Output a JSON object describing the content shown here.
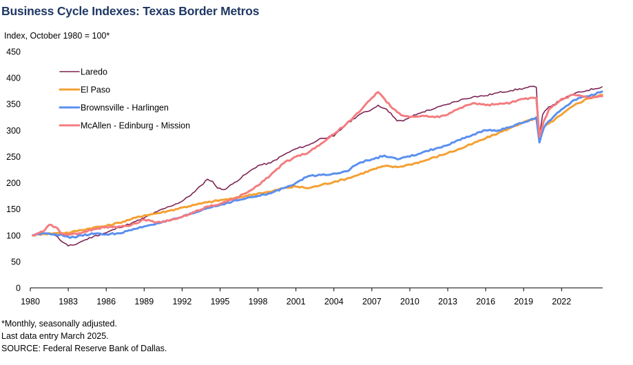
{
  "title": "Business Cycle Indexes: Texas Border Metros",
  "notes": [
    "*Monthly, seasonally adjusted.",
    "Last data entry March 2025.",
    "SOURCE: Federal Reserve Bank of Dallas."
  ],
  "chart_data": {
    "type": "line",
    "title": "Business Cycle Indexes: Texas Border Metros",
    "xlabel": "",
    "ylabel": "Index, October 1980 = 100*",
    "xlim": [
      1980,
      2025.25
    ],
    "ylim": [
      0,
      450
    ],
    "y_ticks": [
      0,
      50,
      100,
      150,
      200,
      250,
      300,
      350,
      400,
      450
    ],
    "x_ticks": [
      1980,
      1983,
      1986,
      1989,
      1992,
      1995,
      1998,
      2001,
      2004,
      2007,
      2010,
      2013,
      2016,
      2019,
      2022
    ],
    "legend_position": "top-left",
    "series": [
      {
        "name": "Laredo",
        "color": "#7b2252",
        "points": [
          [
            1980.2,
            100
          ],
          [
            1981,
            103
          ],
          [
            1981.5,
            104
          ],
          [
            1982,
            100
          ],
          [
            1982.5,
            88
          ],
          [
            1983,
            80
          ],
          [
            1983.5,
            82
          ],
          [
            1984,
            88
          ],
          [
            1985,
            98
          ],
          [
            1986,
            105
          ],
          [
            1987,
            115
          ],
          [
            1988,
            123
          ],
          [
            1989,
            133
          ],
          [
            1990,
            145
          ],
          [
            1991,
            155
          ],
          [
            1992,
            165
          ],
          [
            1993,
            183
          ],
          [
            1993.5,
            195
          ],
          [
            1994,
            207
          ],
          [
            1994.4,
            203
          ],
          [
            1994.8,
            190
          ],
          [
            1995.3,
            187
          ],
          [
            1996,
            198
          ],
          [
            1997,
            216
          ],
          [
            1998,
            233
          ],
          [
            1999,
            238
          ],
          [
            2000,
            253
          ],
          [
            2001,
            265
          ],
          [
            2002,
            272
          ],
          [
            2003,
            285
          ],
          [
            2004,
            289
          ],
          [
            2005,
            312
          ],
          [
            2006,
            330
          ],
          [
            2007,
            340
          ],
          [
            2007.5,
            348
          ],
          [
            2008,
            342
          ],
          [
            2008.5,
            333
          ],
          [
            2009,
            318
          ],
          [
            2009.5,
            318
          ],
          [
            2010,
            325
          ],
          [
            2011,
            335
          ],
          [
            2012,
            342
          ],
          [
            2013,
            350
          ],
          [
            2014,
            358
          ],
          [
            2015,
            364
          ],
          [
            2016,
            366
          ],
          [
            2017,
            372
          ],
          [
            2018,
            376
          ],
          [
            2019,
            380
          ],
          [
            2019.8,
            384
          ],
          [
            2020.0,
            382
          ],
          [
            2020.25,
            290
          ],
          [
            2020.5,
            330
          ],
          [
            2021,
            345
          ],
          [
            2022,
            358
          ],
          [
            2023,
            370
          ],
          [
            2024,
            376
          ],
          [
            2025.2,
            383
          ]
        ]
      },
      {
        "name": "El Paso",
        "color": "#f4a032",
        "points": [
          [
            1980.2,
            100
          ],
          [
            1981,
            103
          ],
          [
            1982,
            104
          ],
          [
            1983,
            105
          ],
          [
            1984,
            110
          ],
          [
            1985,
            115
          ],
          [
            1986,
            118
          ],
          [
            1987,
            124
          ],
          [
            1988,
            131
          ],
          [
            1989,
            138
          ],
          [
            1990,
            142
          ],
          [
            1991,
            147
          ],
          [
            1992,
            153
          ],
          [
            1993,
            158
          ],
          [
            1994,
            163
          ],
          [
            1995,
            167
          ],
          [
            1996,
            170
          ],
          [
            1997,
            175
          ],
          [
            1998,
            180
          ],
          [
            1999,
            183
          ],
          [
            2000,
            190
          ],
          [
            2001,
            193
          ],
          [
            2002,
            190
          ],
          [
            2003,
            196
          ],
          [
            2004,
            202
          ],
          [
            2005,
            208
          ],
          [
            2006,
            216
          ],
          [
            2007,
            225
          ],
          [
            2008,
            232
          ],
          [
            2009,
            230
          ],
          [
            2010,
            235
          ],
          [
            2011,
            241
          ],
          [
            2012,
            249
          ],
          [
            2013,
            257
          ],
          [
            2014,
            265
          ],
          [
            2015,
            275
          ],
          [
            2016,
            285
          ],
          [
            2017,
            295
          ],
          [
            2018,
            305
          ],
          [
            2019,
            316
          ],
          [
            2020.0,
            322
          ],
          [
            2020.25,
            296
          ],
          [
            2020.5,
            305
          ],
          [
            2021,
            313
          ],
          [
            2022,
            330
          ],
          [
            2023,
            348
          ],
          [
            2024,
            360
          ],
          [
            2025.2,
            368
          ]
        ]
      },
      {
        "name": "Brownsville - Harlingen",
        "color": "#5b8ff0",
        "points": [
          [
            1980.2,
            100
          ],
          [
            1981,
            105
          ],
          [
            1982,
            102
          ],
          [
            1983,
            97
          ],
          [
            1983.5,
            96
          ],
          [
            1984,
            100
          ],
          [
            1985,
            103
          ],
          [
            1986,
            102
          ],
          [
            1987,
            104
          ],
          [
            1988,
            110
          ],
          [
            1989,
            117
          ],
          [
            1990,
            123
          ],
          [
            1991,
            128
          ],
          [
            1992,
            135
          ],
          [
            1993,
            143
          ],
          [
            1994,
            152
          ],
          [
            1995,
            158
          ],
          [
            1996,
            165
          ],
          [
            1997,
            170
          ],
          [
            1998,
            175
          ],
          [
            1999,
            180
          ],
          [
            2000,
            190
          ],
          [
            2001,
            200
          ],
          [
            2002,
            213
          ],
          [
            2003,
            215
          ],
          [
            2004,
            218
          ],
          [
            2005,
            222
          ],
          [
            2006,
            238
          ],
          [
            2007,
            245
          ],
          [
            2008,
            252
          ],
          [
            2009,
            245
          ],
          [
            2010,
            250
          ],
          [
            2011,
            258
          ],
          [
            2012,
            265
          ],
          [
            2013,
            272
          ],
          [
            2014,
            282
          ],
          [
            2015,
            292
          ],
          [
            2016,
            300
          ],
          [
            2017,
            300
          ],
          [
            2018,
            307
          ],
          [
            2019,
            315
          ],
          [
            2020.0,
            325
          ],
          [
            2020.25,
            277
          ],
          [
            2020.6,
            305
          ],
          [
            2021,
            318
          ],
          [
            2022,
            340
          ],
          [
            2023,
            358
          ],
          [
            2024,
            365
          ],
          [
            2025.2,
            374
          ]
        ]
      },
      {
        "name": "McAllen - Edinburg - Mission",
        "color": "#f47c7f",
        "points": [
          [
            1980.2,
            100
          ],
          [
            1981,
            107
          ],
          [
            1981.5,
            120
          ],
          [
            1982,
            116
          ],
          [
            1982.5,
            103
          ],
          [
            1983,
            101
          ],
          [
            1984,
            104
          ],
          [
            1985,
            112
          ],
          [
            1986,
            116
          ],
          [
            1987,
            117
          ],
          [
            1988,
            120
          ],
          [
            1989,
            130
          ],
          [
            1990,
            125
          ],
          [
            1991,
            128
          ],
          [
            1992,
            135
          ],
          [
            1993,
            145
          ],
          [
            1994,
            155
          ],
          [
            1995,
            160
          ],
          [
            1996,
            168
          ],
          [
            1997,
            180
          ],
          [
            1998,
            195
          ],
          [
            1999,
            215
          ],
          [
            2000,
            237
          ],
          [
            2001,
            250
          ],
          [
            2002,
            258
          ],
          [
            2003,
            275
          ],
          [
            2004,
            293
          ],
          [
            2005,
            313
          ],
          [
            2006,
            335
          ],
          [
            2007,
            362
          ],
          [
            2007.5,
            373
          ],
          [
            2008,
            360
          ],
          [
            2008.5,
            345
          ],
          [
            2009,
            335
          ],
          [
            2009.5,
            328
          ],
          [
            2010,
            325
          ],
          [
            2011,
            328
          ],
          [
            2012,
            325
          ],
          [
            2013,
            330
          ],
          [
            2014,
            343
          ],
          [
            2015,
            352
          ],
          [
            2016,
            348
          ],
          [
            2017,
            350
          ],
          [
            2018,
            353
          ],
          [
            2019,
            360
          ],
          [
            2020.0,
            362
          ],
          [
            2020.25,
            288
          ],
          [
            2020.6,
            318
          ],
          [
            2021,
            340
          ],
          [
            2022,
            360
          ],
          [
            2023,
            368
          ],
          [
            2024,
            363
          ],
          [
            2025.2,
            365
          ]
        ]
      }
    ]
  }
}
